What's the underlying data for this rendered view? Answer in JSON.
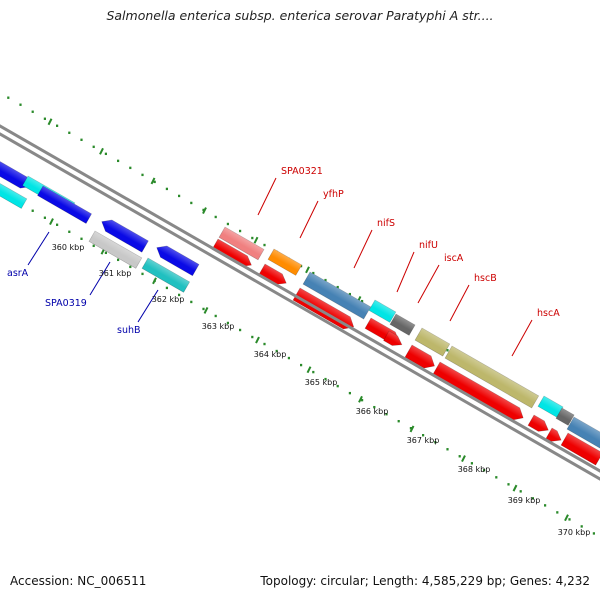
{
  "title": "Salmonella enterica subsp. enterica serovar Paratyphi A str....",
  "footer": {
    "accession": "Accession: NC_006511",
    "summary": "Topology: circular; Length: 4,585,229 bp; Genes: 4,232"
  },
  "colors": {
    "label_forward": "#cc0000",
    "label_reverse": "#0000aa",
    "axis": "#808080",
    "ticks": "#2a8a2a"
  },
  "ticks": [
    {
      "kbp": 360,
      "label": "360 kbp"
    },
    {
      "kbp": 361,
      "label": "361 kbp"
    },
    {
      "kbp": 362,
      "label": "362 kbp"
    },
    {
      "kbp": 363,
      "label": "363 kbp"
    },
    {
      "kbp": 364,
      "label": "364 kbp"
    },
    {
      "kbp": 365,
      "label": "365 kbp"
    },
    {
      "kbp": 366,
      "label": "366 kbp"
    },
    {
      "kbp": 367,
      "label": "367 kbp"
    },
    {
      "kbp": 368,
      "label": "368 kbp"
    },
    {
      "kbp": 369,
      "label": "369 kbp"
    },
    {
      "kbp": 370,
      "label": "370 kbp"
    }
  ],
  "gene_labels": [
    {
      "name": "asrA",
      "strand": "reverse"
    },
    {
      "name": "SPA0319",
      "strand": "reverse"
    },
    {
      "name": "suhB",
      "strand": "reverse"
    },
    {
      "name": "SPA0321",
      "strand": "forward"
    },
    {
      "name": "yfhP",
      "strand": "forward"
    },
    {
      "name": "nifS",
      "strand": "forward"
    },
    {
      "name": "nifU",
      "strand": "forward"
    },
    {
      "name": "iscA",
      "strand": "forward"
    },
    {
      "name": "hscB",
      "strand": "forward"
    },
    {
      "name": "hscA",
      "strand": "forward"
    }
  ]
}
